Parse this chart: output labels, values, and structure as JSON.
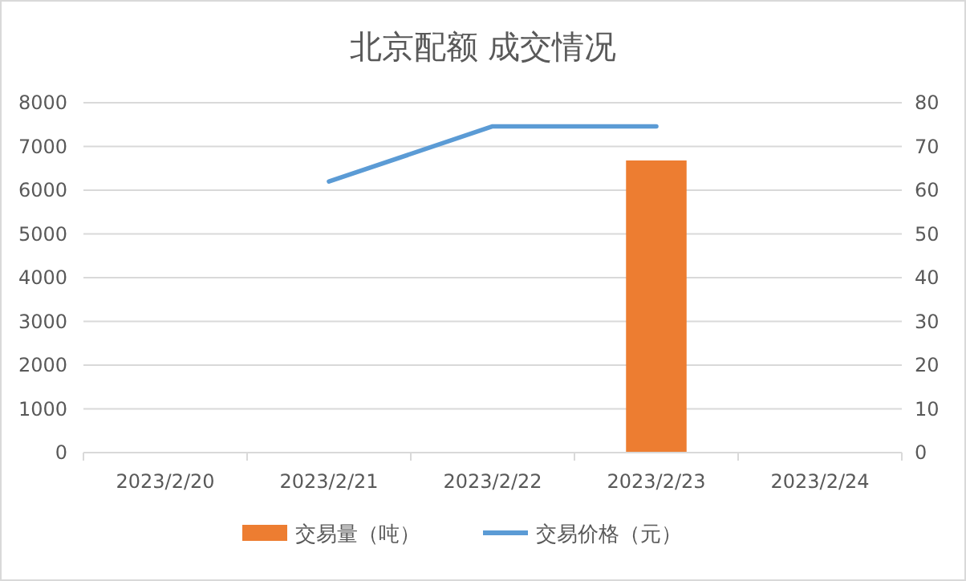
{
  "chart_data": {
    "type": "bar",
    "title": "北京配额 成交情况",
    "categories": [
      "2023/2/20",
      "2023/2/21",
      "2023/2/22",
      "2023/2/23",
      "2023/2/24"
    ],
    "series": [
      {
        "name": "交易量（吨）",
        "color": "#ed7d31",
        "values": [
          null,
          null,
          null,
          6680,
          null
        ]
      },
      {
        "name": "交易价格（元）",
        "type": "line",
        "axis": "y2",
        "color": "#5b9bd5",
        "values": [
          null,
          62,
          74.6,
          74.6,
          null
        ]
      }
    ],
    "ylim": [
      0,
      8000
    ],
    "yticks": [
      0,
      1000,
      2000,
      3000,
      4000,
      5000,
      6000,
      7000,
      8000
    ],
    "y2lim": [
      0,
      80
    ],
    "y2ticks": [
      0,
      10,
      20,
      30,
      40,
      50,
      60,
      70,
      80
    ],
    "grid": "y",
    "legend": "bottom"
  }
}
